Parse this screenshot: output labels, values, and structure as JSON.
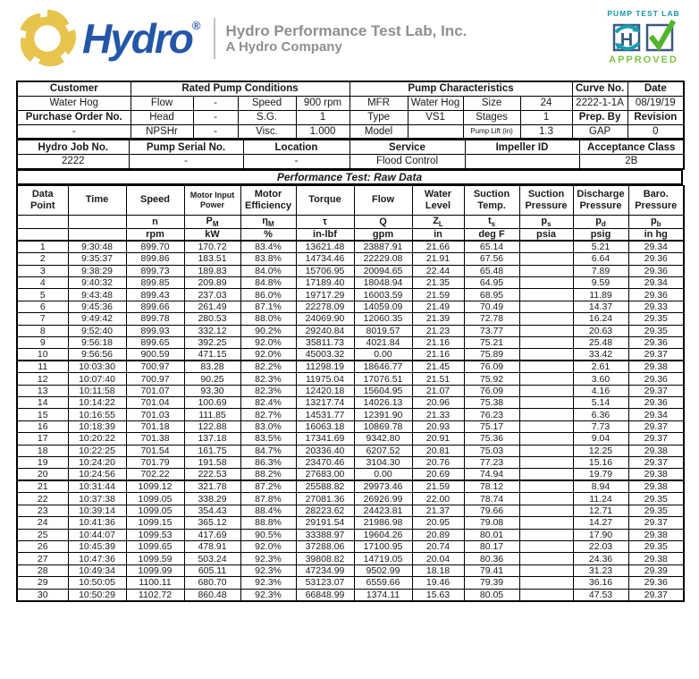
{
  "brand": {
    "logo_text": "Hydro",
    "registered_mark": "®",
    "tagline_line1": "Hydro Performance Test Lab, Inc.",
    "tagline_line2": "A Hydro Company",
    "colors": {
      "logo_blue": "#2456A8",
      "logo_gold": "#E7C44D",
      "tagline_gray": "#8d9094"
    }
  },
  "approval_badge": {
    "title": "PUMP TEST LAB",
    "approved_label": "APPROVED",
    "colors": {
      "teal": "#1694A8",
      "navy": "#3A5A7E",
      "check_green": "#52B52E",
      "approved_green": "#7DC242"
    }
  },
  "info": {
    "customer": {
      "label": "Customer",
      "value": "Water Hog"
    },
    "purchase_order": {
      "label": "Purchase Order No.",
      "value": "-"
    },
    "rated_conditions": {
      "title": "Rated Pump Conditions",
      "fields": [
        {
          "label": "Flow",
          "value": "-"
        },
        {
          "label": "Speed",
          "value": "900 rpm"
        },
        {
          "label": "Head",
          "value": "-"
        },
        {
          "label": "S.G.",
          "value": "1"
        },
        {
          "label": "NPSHr",
          "value": "-"
        },
        {
          "label": "Visc.",
          "value": "1.000"
        }
      ]
    },
    "pump_characteristics": {
      "title": "Pump Characteristics",
      "fields": [
        {
          "label": "MFR",
          "value": "Water Hog"
        },
        {
          "label": "Size",
          "value": "24"
        },
        {
          "label": "Type",
          "value": "VS1"
        },
        {
          "label": "Stages",
          "value": "1"
        },
        {
          "label": "Model",
          "value": ""
        },
        {
          "label": "Pump Lift (in)",
          "value": "1.3"
        }
      ]
    },
    "curve_no": {
      "label": "Curve No.",
      "value": "2222-1-1A"
    },
    "date": {
      "label": "Date",
      "value": "08/19/19"
    },
    "prep_by": {
      "label": "Prep. By",
      "value": "GAP"
    },
    "revision": {
      "label": "Revision",
      "value": "0"
    },
    "hydro_job_no": {
      "label": "Hydro Job No.",
      "value": "2222"
    },
    "pump_serial_no": {
      "label": "Pump Serial No.",
      "value": "-"
    },
    "location": {
      "label": "Location",
      "value": "-"
    },
    "service": {
      "label": "Service",
      "value": "Flood Control"
    },
    "impeller_id": {
      "label": "Impeller ID",
      "value": ""
    },
    "acceptance_class": {
      "label": "Acceptance Class",
      "value": "2B"
    }
  },
  "raw_data": {
    "section_title": "Performance Test: Raw Data",
    "columns": [
      {
        "name": "Data Point",
        "sym": "",
        "sub": "",
        "unit": ""
      },
      {
        "name": "Time",
        "sym": "",
        "sub": "",
        "unit": ""
      },
      {
        "name": "Speed",
        "sym": "n",
        "sub": "",
        "unit": "rpm"
      },
      {
        "name": "Motor Input Power",
        "sym": "P",
        "sub": "M",
        "unit": "kW"
      },
      {
        "name": "Motor Efficiency",
        "sym": "η",
        "sub": "M",
        "unit": "%"
      },
      {
        "name": "Torque",
        "sym": "τ",
        "sub": "",
        "unit": "in-lbf"
      },
      {
        "name": "Flow",
        "sym": "Q",
        "sub": "",
        "unit": "gpm"
      },
      {
        "name": "Water Level",
        "sym": "Z",
        "sub": "L",
        "unit": "in"
      },
      {
        "name": "Suction Temp.",
        "sym": "t",
        "sub": "s",
        "unit": "deg F"
      },
      {
        "name": "Suction Pressure",
        "sym": "p",
        "sub": "s",
        "unit": "psia"
      },
      {
        "name": "Discharge Pressure",
        "sym": "p",
        "sub": "d",
        "unit": "psig"
      },
      {
        "name": "Baro. Pressure",
        "sym": "p",
        "sub": "b",
        "unit": "in hg"
      }
    ],
    "rows": [
      [
        "1",
        "9:30:48",
        "899.70",
        "170.72",
        "83.4%",
        "13621.48",
        "23887.91",
        "21.66",
        "65.14",
        "",
        "5.21",
        "29.34"
      ],
      [
        "2",
        "9:35:37",
        "899.86",
        "183.51",
        "83.8%",
        "14734.46",
        "22229.08",
        "21.91",
        "67.56",
        "",
        "6.64",
        "29.36"
      ],
      [
        "3",
        "9:38:29",
        "899.73",
        "189.83",
        "84.0%",
        "15706.95",
        "20094.65",
        "22.44",
        "65.48",
        "",
        "7.89",
        "29.36"
      ],
      [
        "4",
        "9:40:32",
        "899.85",
        "209.89",
        "84.8%",
        "17189.40",
        "18048.94",
        "21.35",
        "64.95",
        "",
        "9.59",
        "29.34"
      ],
      [
        "5",
        "9:43:48",
        "899.43",
        "237.03",
        "86.0%",
        "19717.29",
        "16003.59",
        "21.59",
        "68.95",
        "",
        "11.89",
        "29.36"
      ],
      [
        "6",
        "9:45:36",
        "899.66",
        "261.49",
        "87.1%",
        "22278.09",
        "14059.09",
        "21.49",
        "70.49",
        "",
        "14.37",
        "29.33"
      ],
      [
        "7",
        "9:49:42",
        "899.78",
        "280.53",
        "88.0%",
        "24069.90",
        "12060.35",
        "21.39",
        "72.78",
        "",
        "16.24",
        "29.35"
      ],
      [
        "8",
        "9:52:40",
        "899.93",
        "332.12",
        "90.2%",
        "29240.84",
        "8019.57",
        "21.23",
        "73.77",
        "",
        "20.63",
        "29.35"
      ],
      [
        "9",
        "9:56:18",
        "899.65",
        "392.25",
        "92.0%",
        "35811.73",
        "4021.84",
        "21.16",
        "75.21",
        "",
        "25.48",
        "29.36"
      ],
      [
        "10",
        "9:56:56",
        "900.59",
        "471.15",
        "92.0%",
        "45003.32",
        "0.00",
        "21.16",
        "75.89",
        "",
        "33.42",
        "29.37"
      ],
      [
        "11",
        "10:03:30",
        "700.97",
        "83.28",
        "82.2%",
        "11298.19",
        "18646.77",
        "21.45",
        "76.09",
        "",
        "2.61",
        "29.38"
      ],
      [
        "12",
        "10:07:40",
        "700.97",
        "90.25",
        "82.3%",
        "11975.04",
        "17076.51",
        "21.51",
        "75.92",
        "",
        "3.60",
        "29.36"
      ],
      [
        "13",
        "10:11:58",
        "701.07",
        "93.30",
        "82.3%",
        "12420.18",
        "15604.95",
        "21.07",
        "76.09",
        "",
        "4.16",
        "29.37"
      ],
      [
        "14",
        "10:14:22",
        "701.04",
        "100.69",
        "82.4%",
        "13217.74",
        "14026.13",
        "20.96",
        "75.38",
        "",
        "5.14",
        "29.36"
      ],
      [
        "15",
        "10:16:55",
        "701.03",
        "111.85",
        "82.7%",
        "14531.77",
        "12391.90",
        "21.33",
        "76.23",
        "",
        "6.36",
        "29.34"
      ],
      [
        "16",
        "10:18:39",
        "701.18",
        "122.88",
        "83.0%",
        "16063.18",
        "10869.78",
        "20.93",
        "75.17",
        "",
        "7.73",
        "29.37"
      ],
      [
        "17",
        "10:20:22",
        "701.38",
        "137.18",
        "83.5%",
        "17341.69",
        "9342.80",
        "20.91",
        "75.36",
        "",
        "9.04",
        "29.37"
      ],
      [
        "18",
        "10:22:25",
        "701.54",
        "161.75",
        "84.7%",
        "20336.40",
        "6207.52",
        "20.81",
        "75.03",
        "",
        "12.25",
        "29.38"
      ],
      [
        "19",
        "10:24:20",
        "701.79",
        "191.58",
        "86.3%",
        "23470.46",
        "3104.30",
        "20.76",
        "77.23",
        "",
        "15.16",
        "29.37"
      ],
      [
        "20",
        "10:24:56",
        "702.22",
        "222.53",
        "88.2%",
        "27683.00",
        "0.00",
        "20.69",
        "74.94",
        "",
        "19.79",
        "29.38"
      ],
      [
        "21",
        "10:31:44",
        "1099.12",
        "321.78",
        "87.2%",
        "25588.82",
        "29973.46",
        "21.59",
        "78.12",
        "",
        "8.94",
        "29.38"
      ],
      [
        "22",
        "10:37:38",
        "1099.05",
        "338.29",
        "87.8%",
        "27081.36",
        "26926.99",
        "22.00",
        "78.74",
        "",
        "11.24",
        "29.35"
      ],
      [
        "23",
        "10:39:14",
        "1099.05",
        "354.43",
        "88.4%",
        "28223.62",
        "24423.81",
        "21.37",
        "79.66",
        "",
        "12.71",
        "29.35"
      ],
      [
        "24",
        "10:41:36",
        "1099.15",
        "365.12",
        "88.8%",
        "29191.54",
        "21986.98",
        "20.95",
        "79.08",
        "",
        "14.27",
        "29.37"
      ],
      [
        "25",
        "10:44:07",
        "1099.53",
        "417.69",
        "90.5%",
        "33388.97",
        "19604.26",
        "20.89",
        "80.01",
        "",
        "17.90",
        "29.38"
      ],
      [
        "26",
        "10:45:39",
        "1099.65",
        "478.91",
        "92.0%",
        "37288.06",
        "17100.95",
        "20.74",
        "80.17",
        "",
        "22.03",
        "29.35"
      ],
      [
        "27",
        "10:47:36",
        "1099.59",
        "503.24",
        "92.3%",
        "39808.82",
        "14719.05",
        "20.04",
        "80.36",
        "",
        "24.36",
        "29.38"
      ],
      [
        "28",
        "10:49:34",
        "1099.99",
        "605.11",
        "92.3%",
        "47234.99",
        "9502.99",
        "18.18",
        "79.41",
        "",
        "31.23",
        "29.39"
      ],
      [
        "29",
        "10:50:05",
        "1100.11",
        "680.70",
        "92.3%",
        "53123.07",
        "6559.66",
        "19.46",
        "79.39",
        "",
        "36.16",
        "29.36"
      ],
      [
        "30",
        "10:50:29",
        "1102.72",
        "860.48",
        "92.3%",
        "66848.99",
        "1374.11",
        "15.63",
        "80.05",
        "",
        "47.53",
        "29.37"
      ]
    ]
  }
}
